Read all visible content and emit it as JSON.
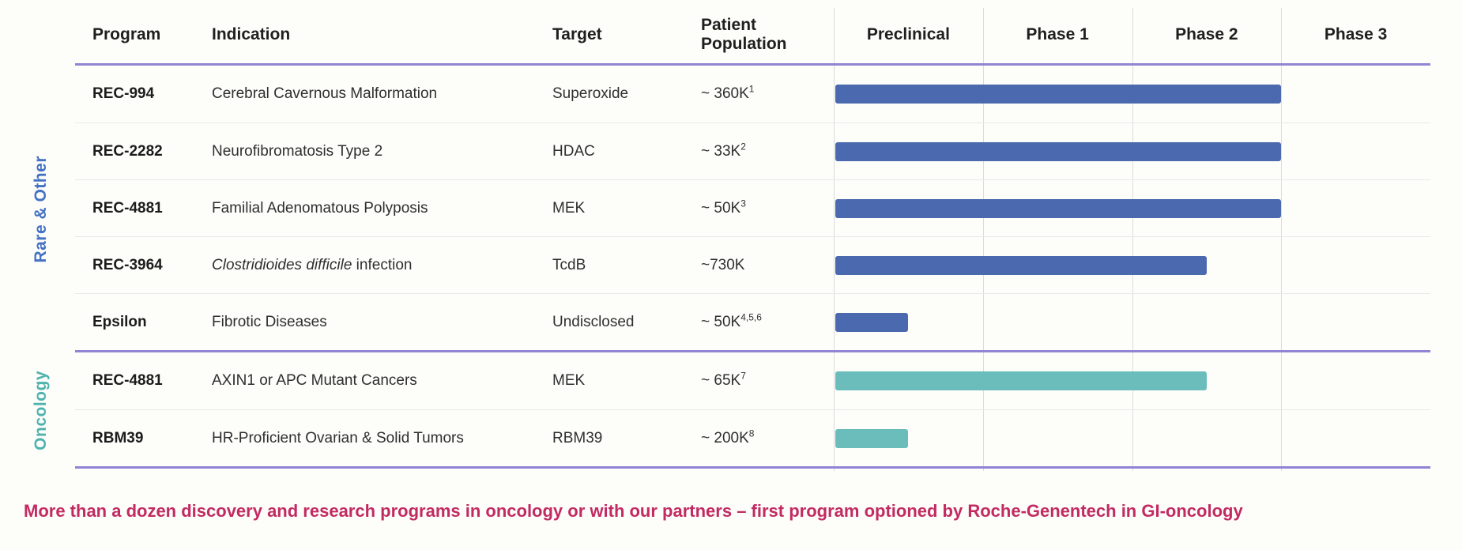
{
  "header": {
    "program": "Program",
    "indication": "Indication",
    "target": "Target",
    "population": "Patient Population"
  },
  "chart_data": {
    "type": "gantt",
    "phase_columns": [
      "Preclinical",
      "Phase 1",
      "Phase 2",
      "Phase 3"
    ],
    "phase_axis_max": 4,
    "grid": "vertical-lines-on",
    "sections": [
      {
        "label": "Rare & Other",
        "label_color": "#4472c4",
        "bar_color": "#4a69ae",
        "rows": [
          {
            "program": "REC-994",
            "indication_italic": "",
            "indication": "Cerebral Cavernous Malformation",
            "target": "Superoxide",
            "population": "~ 360K",
            "population_superscript": "1",
            "progress_phases": 3.0
          },
          {
            "program": "REC-2282",
            "indication_italic": "",
            "indication": "Neurofibromatosis Type 2",
            "target": "HDAC",
            "population": "~ 33K",
            "population_superscript": "2",
            "progress_phases": 3.0
          },
          {
            "program": "REC-4881",
            "indication_italic": "",
            "indication": "Familial Adenomatous Polyposis",
            "target": "MEK",
            "population": "~ 50K",
            "population_superscript": "3",
            "progress_phases": 3.0
          },
          {
            "program": "REC-3964",
            "indication_italic": "Clostridioides difficile",
            "indication": " infection",
            "target": "TcdB",
            "population": "~730K",
            "population_superscript": "",
            "progress_phases": 2.5
          },
          {
            "program": "Epsilon",
            "indication_italic": "",
            "indication": "Fibrotic Diseases",
            "target": "Undisclosed",
            "population": "~ 50K",
            "population_superscript": "4,5,6",
            "progress_phases": 0.5
          }
        ]
      },
      {
        "label": "Oncology",
        "label_color": "#4fb3ad",
        "bar_color": "#6abdbb",
        "rows": [
          {
            "program": "REC-4881",
            "indication_italic": "",
            "indication": "AXIN1 or APC Mutant Cancers",
            "target": "MEK",
            "population": "~ 65K",
            "population_superscript": "7",
            "progress_phases": 2.5
          },
          {
            "program": "RBM39",
            "indication_italic": "",
            "indication": "HR-Proficient Ovarian & Solid Tumors",
            "target": "RBM39",
            "population": "~ 200K",
            "population_superscript": "8",
            "progress_phases": 0.5
          }
        ]
      }
    ]
  },
  "footer": {
    "text": "More than a dozen discovery and research programs in oncology or with our partners – first program optioned by Roche-Genentech in GI-oncology",
    "color": "#c22a62"
  }
}
